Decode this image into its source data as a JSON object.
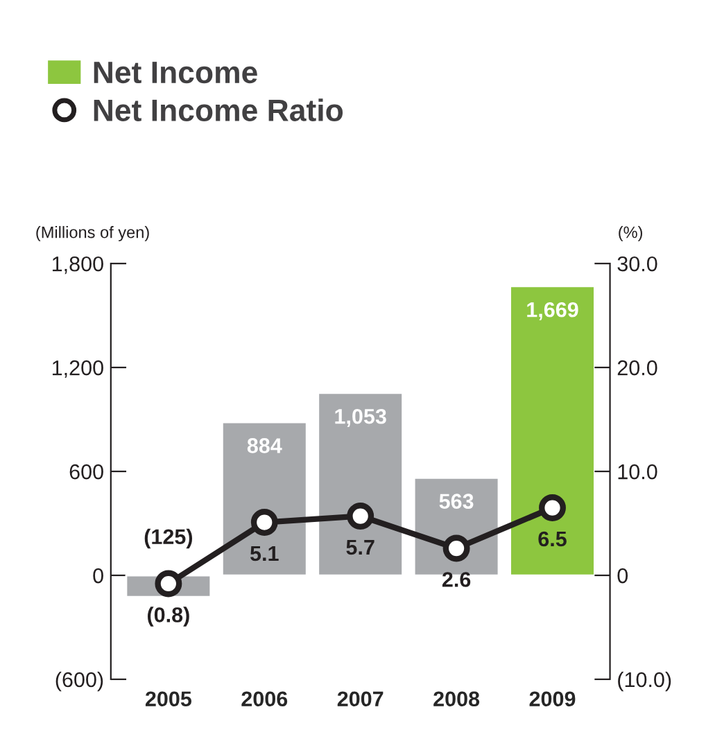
{
  "chart_data": {
    "type": "bar",
    "categories": [
      "2005",
      "2006",
      "2007",
      "2008",
      "2009"
    ],
    "ylabel": "(Millions of yen)",
    "y2label": "(%)",
    "ylim": [
      -600,
      1800
    ],
    "yticks": [
      {
        "value": -600,
        "label": "(600)"
      },
      0,
      600,
      {
        "value": 1200,
        "label": "1,200"
      },
      {
        "value": 1800,
        "label": "1,800"
      }
    ],
    "y2lim": [
      -10,
      30
    ],
    "y2ticks": [
      {
        "value": -10,
        "label": "(10.0)"
      },
      0,
      {
        "value": 10,
        "label": "10.0"
      },
      {
        "value": 20,
        "label": "20.0"
      },
      {
        "value": 30,
        "label": "30.0"
      }
    ],
    "legend": "top left",
    "grid": false,
    "series": [
      {
        "name": "Net Income",
        "color": "#8dc63f",
        "colors": [
          "#a7a9ac",
          "#a7a9ac",
          "#a7a9ac",
          "#a7a9ac",
          "#8dc63f"
        ],
        "values": [
          -125,
          884,
          1053,
          563,
          1669
        ],
        "value_labels": [
          "(125)",
          "884",
          "1,053",
          "563",
          "1,669"
        ]
      },
      {
        "name": "Net Income Ratio",
        "type": "line",
        "axis": "y2",
        "color": "#231f20",
        "marker": "circle",
        "values": [
          -0.8,
          5.1,
          5.7,
          2.6,
          6.5
        ],
        "value_labels": [
          "(0.8)",
          "5.1",
          "5.7",
          "2.6",
          "6.5"
        ]
      }
    ]
  }
}
